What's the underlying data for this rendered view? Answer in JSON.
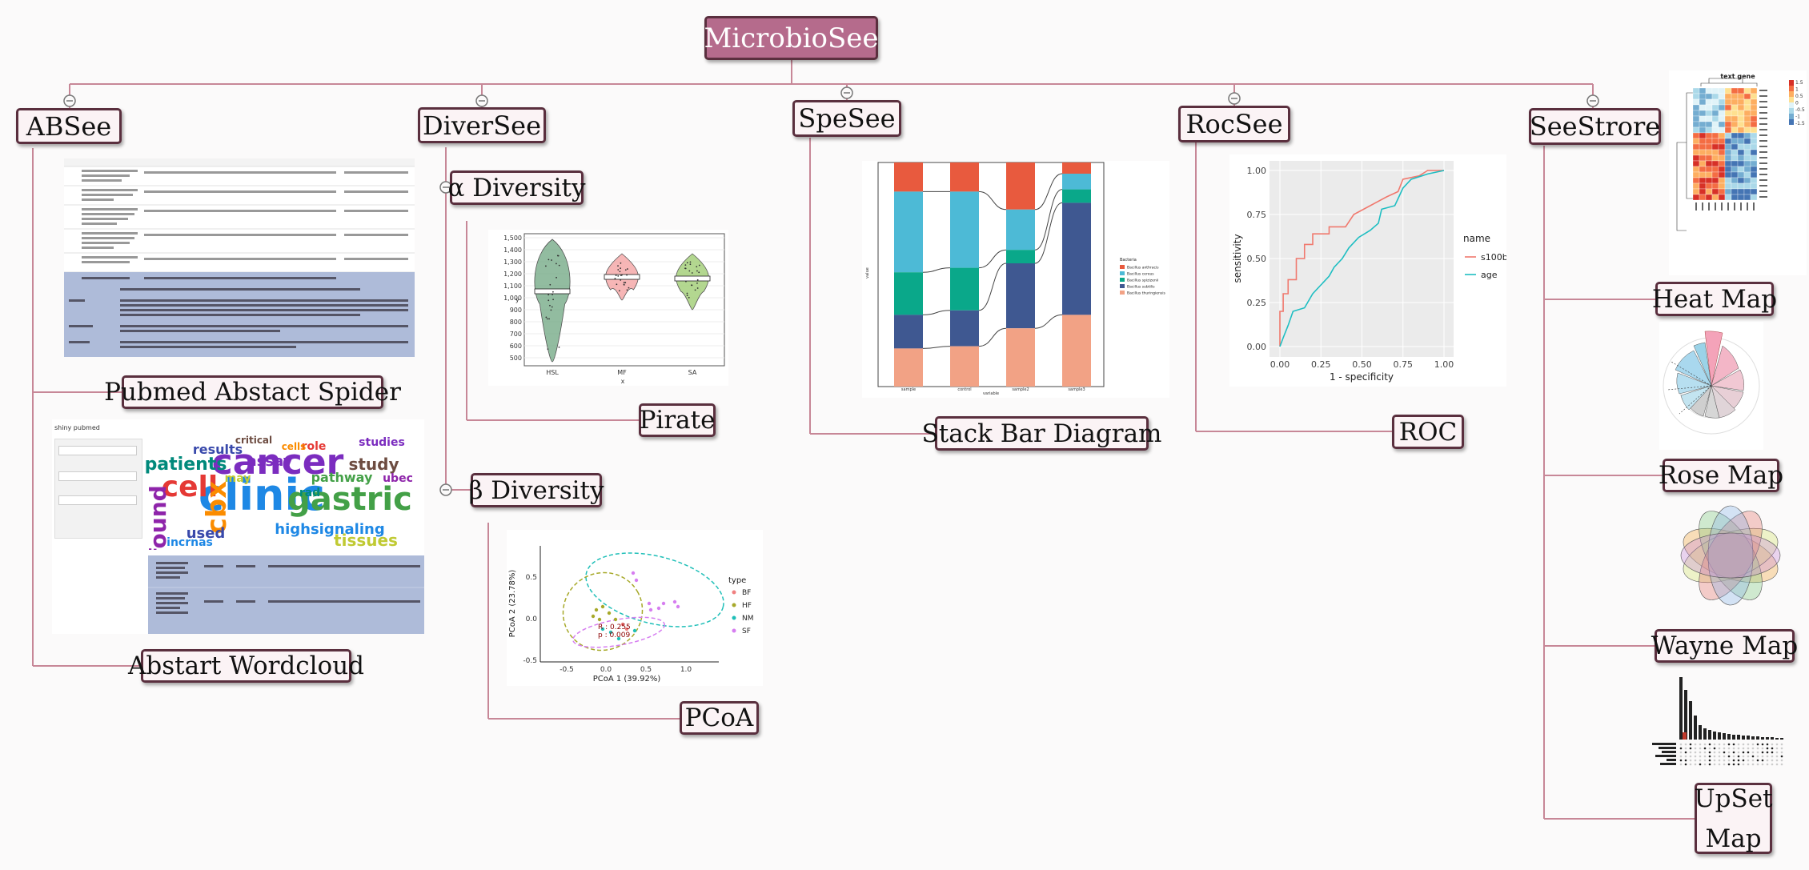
{
  "root": {
    "label": "MicrobioSee"
  },
  "branches": [
    {
      "label": "ABSee",
      "children": [
        "Pubmed Abstact Spider",
        "Abstart Wordcloud"
      ]
    },
    {
      "label": "DiverSee",
      "children": [
        {
          "label": "α Diversity",
          "children": [
            "Pirate"
          ]
        },
        {
          "label": "β Diversity",
          "children": [
            "PCoA"
          ]
        }
      ]
    },
    {
      "label": "SpeSee",
      "children": [
        "Stack Bar Diagram"
      ]
    },
    {
      "label": "RocSee",
      "children": [
        "ROC"
      ]
    },
    {
      "label": "SeeStrore",
      "children": [
        "Heat Map",
        "Rose Map",
        "Wayne Map",
        "UpSet Map"
      ]
    }
  ],
  "colors": {
    "root_fill": "#b56b8c",
    "node_fill": "#fbf3f5",
    "node_border": "#5a2f3e",
    "connector": "#c78797"
  },
  "thumbnails": {
    "pubmed_table": {
      "highlight_color": "#aebbd9"
    },
    "wordcloud": {
      "app_title": "shiny pubmed",
      "words": [
        "cancer",
        "clinic",
        "gastric",
        "cell",
        "cbx",
        "found",
        "patients",
        "results",
        "tissues",
        "study",
        "assay",
        "highsignaling",
        "pathway",
        "role",
        "cells",
        "ubec",
        "rad",
        "used",
        "may",
        "critical",
        "studies",
        "incrnas"
      ]
    },
    "pirate": {
      "ylabel": "y",
      "xlabel": "x",
      "y_ticks": [
        "1,500",
        "1,400",
        "1,300",
        "1,200",
        "1,100",
        "1,000",
        "900",
        "800",
        "700",
        "600",
        "500"
      ],
      "categories": [
        "HSL",
        "MF",
        "SA"
      ],
      "colors": [
        "#7fb08f",
        "#f4a9a9",
        "#a6d07c"
      ]
    },
    "pcoa": {
      "xlabel": "PCoA 1 (39.92%)",
      "ylabel": "PCoA 2 (23.78%)",
      "x_ticks": [
        "-0.5",
        "0.0",
        "0.5",
        "1.0"
      ],
      "y_ticks": [
        "0.5",
        "0.0",
        "-0.5"
      ],
      "annotation_r": "R : 0.255",
      "annotation_p": "p : 0.009",
      "legend_title": "type",
      "legend": [
        {
          "name": "BF",
          "color": "#f08080"
        },
        {
          "name": "HF",
          "color": "#a7a92a"
        },
        {
          "name": "NM",
          "color": "#1fbfb8"
        },
        {
          "name": "SF",
          "color": "#d67ef0"
        }
      ]
    },
    "stackbar": {
      "legend_title": "Bacteria",
      "legend": [
        "Bacillus anthracis",
        "Bacillus cereus",
        "Bacillus spizizenii",
        "Bacillus subtilis",
        "Bacillus thuringiensis"
      ],
      "colors": [
        "#e85a3e",
        "#4dbad6",
        "#0aa88a",
        "#3f5891",
        "#f2a285"
      ],
      "categories": [
        "sample",
        "control",
        "sample2",
        "sample3"
      ],
      "xlabel": "variable",
      "ylabel": "value"
    },
    "roc": {
      "xlabel": "1 - specificity",
      "ylabel": "sensitivity",
      "ticks": [
        "0.00",
        "0.25",
        "0.50",
        "0.75",
        "1.00"
      ],
      "legend_title": "name",
      "legend": [
        {
          "name": "s100b",
          "color": "#f0796e"
        },
        {
          "name": "age",
          "color": "#1fbec2"
        }
      ]
    },
    "heatmap": {
      "title": "text gene",
      "scale_labels": [
        "1.5",
        "1",
        "0.5",
        "0",
        "-0.5",
        "-1",
        "-1.5"
      ]
    }
  }
}
